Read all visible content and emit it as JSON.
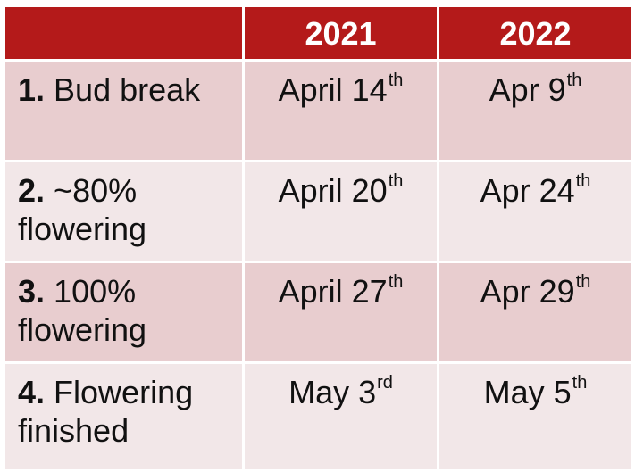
{
  "header": {
    "blank": "",
    "col_2021": "2021",
    "col_2022": "2022"
  },
  "rows": [
    {
      "num": "1.",
      "label": "Bud break",
      "d2021": {
        "main": "April 14",
        "suffix": "th"
      },
      "d2022": {
        "main": "Apr 9",
        "suffix": "th"
      }
    },
    {
      "num": "2.",
      "label": "~80% flowering",
      "d2021": {
        "main": "April 20",
        "suffix": "th"
      },
      "d2022": {
        "main": "Apr 24",
        "suffix": "th"
      }
    },
    {
      "num": "3.",
      "label": "100% flowering",
      "d2021": {
        "main": "April 27",
        "suffix": "th"
      },
      "d2022": {
        "main": "Apr 29",
        "suffix": "th"
      }
    },
    {
      "num": "4.",
      "label": "Flowering finished",
      "d2021": {
        "main": "May 3",
        "suffix": "rd"
      },
      "d2022": {
        "main": "May 5",
        "suffix": "th"
      }
    }
  ],
  "colors": {
    "header_bg": "#b41a1a",
    "row_dark": "#e8cdcf",
    "row_light": "#f2e7e8"
  }
}
